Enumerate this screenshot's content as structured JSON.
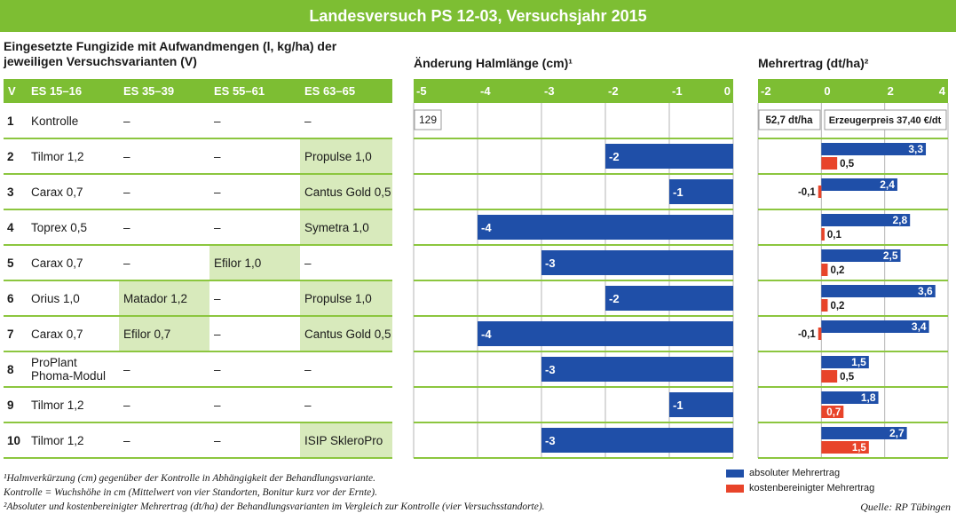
{
  "title": "Landesversuch PS 12-03, Versuchsjahr 2015",
  "table_header_line1": "Eingesetzte Fungizide mit Aufwandmengen (l, kg/ha) der",
  "table_header_line2": "jeweiligen Versuchsvarianten (V)",
  "halm_header": "Änderung Halmlänge (cm)¹",
  "mehr_header": "Mehrertrag (dt/ha)²",
  "columns": [
    "V",
    "ES 15–16",
    "ES 35–39",
    "ES 55–61",
    "ES 63–65"
  ],
  "rows": [
    {
      "v": "1",
      "es15": "Kontrolle",
      "es35": "–",
      "es55": "–",
      "es63": "–"
    },
    {
      "v": "2",
      "es15": "Tilmor 1,2",
      "es35": "–",
      "es55": "–",
      "es63": "Propulse 1,0"
    },
    {
      "v": "3",
      "es15": "Carax 0,7",
      "es35": "–",
      "es55": "–",
      "es63": "Cantus Gold 0,5"
    },
    {
      "v": "4",
      "es15": "Toprex 0,5",
      "es35": "–",
      "es55": "–",
      "es63": "Symetra 1,0"
    },
    {
      "v": "5",
      "es15": "Carax 0,7",
      "es35": "–",
      "es55": "Efilor 1,0",
      "es63": "–"
    },
    {
      "v": "6",
      "es15": "Orius 1,0",
      "es35": "Matador 1,2",
      "es55": "–",
      "es63": "Propulse 1,0"
    },
    {
      "v": "7",
      "es15": "Carax 0,7",
      "es35": "Efilor 0,7",
      "es55": "–",
      "es63": "Cantus Gold 0,5"
    },
    {
      "v": "8",
      "es15": [
        "ProPlant",
        "Phoma-Modul"
      ],
      "es35": "–",
      "es55": "–",
      "es63": "–"
    },
    {
      "v": "9",
      "es15": "Tilmor 1,2",
      "es35": "–",
      "es55": "–",
      "es63": "–"
    },
    {
      "v": "10",
      "es15": "Tilmor 1,2",
      "es35": "–",
      "es55": "–",
      "es63": "ISIP SkleroPro"
    }
  ],
  "control_labels": {
    "halm": "129",
    "mehr": "52,7 dt/ha",
    "price": "Erzeugerpreis 37,40 €/dt"
  },
  "chart_data": [
    {
      "type": "bar",
      "orientation": "horizontal",
      "title": "Änderung Halmlänge (cm)¹",
      "categories": [
        "2",
        "3",
        "4",
        "5",
        "6",
        "7",
        "8",
        "9",
        "10"
      ],
      "values": [
        -2,
        -1,
        -4,
        -3,
        -2,
        -4,
        -3,
        -1,
        -3
      ],
      "value_labels": [
        "-2",
        "-1",
        "-4",
        "-3",
        "-2",
        "-4",
        "-3",
        "-1",
        "-3"
      ],
      "xlim": [
        -5,
        0
      ],
      "ticks": [
        "-5",
        "-4",
        "-3",
        "-2",
        "-1",
        "0"
      ],
      "grid": true,
      "color": "#1f4fa8"
    },
    {
      "type": "bar",
      "orientation": "horizontal",
      "title": "Mehrertrag (dt/ha)²",
      "categories": [
        "2",
        "3",
        "4",
        "5",
        "6",
        "7",
        "8",
        "9",
        "10"
      ],
      "series": [
        {
          "name": "absoluter Mehrertrag",
          "color": "#1f4fa8",
          "values": [
            3.3,
            2.4,
            2.8,
            2.5,
            3.6,
            3.4,
            1.5,
            1.8,
            2.7
          ],
          "labels": [
            "3,3",
            "2,4",
            "2,8",
            "2,5",
            "3,6",
            "3,4",
            "1,5",
            "1,8",
            "2,7"
          ]
        },
        {
          "name": "kostenbereinigter Mehrertrag",
          "color": "#e8442a",
          "values": [
            0.5,
            -0.1,
            0.1,
            0.2,
            0.2,
            -0.1,
            0.5,
            0.7,
            1.5
          ],
          "labels": [
            "0,5",
            "-0,1",
            "0,1",
            "0,2",
            "0,2",
            "-0,1",
            "0,5",
            "0,7",
            "1,5"
          ]
        }
      ],
      "xlim": [
        -2,
        4
      ],
      "ticks": [
        "-2",
        "0",
        "2",
        "4"
      ],
      "grid": true,
      "legend": "bottom-right"
    }
  ],
  "footnotes": [
    "¹Halmverkürzung (cm) gegenüber der Kontrolle in Abhängigkeit der Behandlungsvariante.",
    "Kontrolle = Wuchshöhe in cm (Mittelwert von vier Standorten, Bonitur kurz vor der Ernte).",
    "²Absoluter und kostenbereinigter Mehrertrag (dt/ha) der Behandlungsvarianten im Vergleich zur Kontrolle (vier Versuchsstandorte)."
  ],
  "source": "Quelle: RP Tübingen",
  "colors": {
    "green": "#7dbe33",
    "light_green": "#d8eabc",
    "line_green": "#8cc63f",
    "blue": "#1f4fa8",
    "red": "#e8442a",
    "grid": "#b5b5b5"
  }
}
